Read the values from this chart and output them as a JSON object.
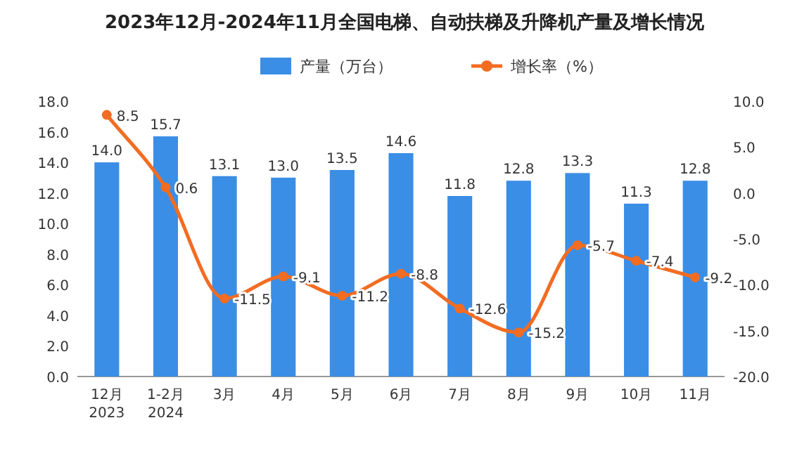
{
  "chart_data": {
    "type": "bar",
    "title": "2023年12月-2024年11月全国电梯、自动扶梯及升降机产量及增长情况",
    "categories": [
      "12月\n2023",
      "1-2月\n2024",
      "3月",
      "4月",
      "5月",
      "6月",
      "7月",
      "8月",
      "9月",
      "10月",
      "11月"
    ],
    "series": [
      {
        "name": "产量（万台）",
        "color": "#3a8ee6",
        "values": [
          14.0,
          15.7,
          13.1,
          13.0,
          13.5,
          14.6,
          11.8,
          12.8,
          13.3,
          11.3,
          12.8
        ],
        "value_labels": [
          "14.0",
          "15.7",
          "13.1",
          "13.0",
          "13.5",
          "14.6",
          "11.8",
          "12.8",
          "13.3",
          "11.3",
          "12.8"
        ]
      },
      {
        "name": "增长率（%）",
        "type": "line",
        "axis": "y2",
        "color": "#f26c22",
        "marker": "circle",
        "values": [
          8.5,
          0.6,
          -11.5,
          -9.1,
          -11.2,
          -8.8,
          -12.6,
          -15.2,
          -5.7,
          -7.4,
          -9.2
        ],
        "value_labels": [
          "8.5",
          "0.6",
          "-11.5",
          "-9.1",
          "-11.2",
          "-8.8",
          "-12.6",
          "-15.2",
          "-5.7",
          "-7.4",
          "-9.2"
        ]
      }
    ],
    "ylim": [
      0,
      18
    ],
    "yticks": [
      {
        "value": 0,
        "label": "0.0"
      },
      {
        "value": 2,
        "label": "2.0"
      },
      {
        "value": 4,
        "label": "4.0"
      },
      {
        "value": 6,
        "label": "6.0"
      },
      {
        "value": 8,
        "label": "8.0"
      },
      {
        "value": 10,
        "label": "10.0"
      },
      {
        "value": 12,
        "label": "12.0"
      },
      {
        "value": 14,
        "label": "14.0"
      },
      {
        "value": 16,
        "label": "16.0"
      },
      {
        "value": 18,
        "label": "18.0"
      }
    ],
    "y2lim": [
      -20,
      10
    ],
    "y2ticks": [
      {
        "value": -20,
        "label": "-20.0"
      },
      {
        "value": -15,
        "label": "-15.0"
      },
      {
        "value": -10,
        "label": "-10.0"
      },
      {
        "value": -5,
        "label": "-5.0"
      },
      {
        "value": 0,
        "label": "0.0"
      },
      {
        "value": 5,
        "label": "5.0"
      },
      {
        "value": 10,
        "label": "10.0"
      }
    ],
    "legend": "top"
  }
}
